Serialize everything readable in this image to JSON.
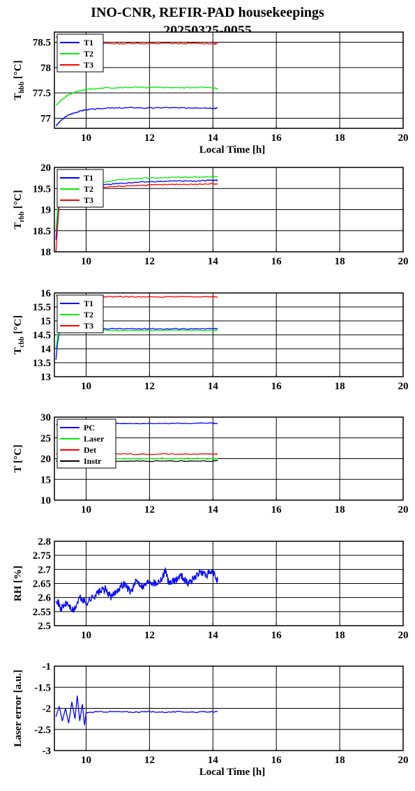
{
  "figure": {
    "title_line1": "INO-CNR, REFIR-PAD housekeepings",
    "title_line2": "20250325-0055"
  },
  "chart_data": [
    {
      "type": "line",
      "ylabel_main": "T",
      "ylabel_sub": "hbb",
      "ylabel_unit": "[°C]",
      "xlabel": "Local Time [h]",
      "xlim": [
        9,
        20
      ],
      "ylim": [
        76.8,
        78.7
      ],
      "xticks": [
        10,
        12,
        14,
        16,
        18,
        20
      ],
      "yticks": [
        77,
        77.5,
        78,
        78.5
      ],
      "ytick_labels": [
        "77",
        "77.5",
        "78",
        "78.5"
      ],
      "grid": true,
      "legend_position": "top-left",
      "series": [
        {
          "name": "T1",
          "color": "#0000ff",
          "x": [
            9.05,
            9.2,
            9.4,
            9.6,
            9.8,
            10.0,
            10.3,
            10.6,
            11,
            11.5,
            12,
            12.5,
            13,
            13.5,
            14,
            14.15
          ],
          "y": [
            76.85,
            76.95,
            77.05,
            77.1,
            77.14,
            77.17,
            77.18,
            77.2,
            77.2,
            77.21,
            77.2,
            77.21,
            77.2,
            77.21,
            77.2,
            77.2
          ]
        },
        {
          "name": "T2",
          "color": "#00ee00",
          "x": [
            9.05,
            9.2,
            9.4,
            9.6,
            9.8,
            10.0,
            10.3,
            10.6,
            11,
            11.5,
            12,
            12.5,
            13,
            13.5,
            14,
            14.15
          ],
          "y": [
            77.25,
            77.35,
            77.45,
            77.5,
            77.54,
            77.57,
            77.58,
            77.6,
            77.6,
            77.61,
            77.6,
            77.61,
            77.6,
            77.61,
            77.6,
            77.58
          ]
        },
        {
          "name": "T3",
          "color": "#ff0000",
          "x": [
            9.05,
            9.5,
            10,
            10.5,
            11,
            11.5,
            12,
            12.5,
            13,
            13.5,
            14,
            14.15
          ],
          "y": [
            78.6,
            78.52,
            78.5,
            78.48,
            78.47,
            78.48,
            78.47,
            78.48,
            78.47,
            78.48,
            78.47,
            78.47
          ]
        }
      ]
    },
    {
      "type": "line",
      "ylabel_main": "T",
      "ylabel_sub": "rbb",
      "ylabel_unit": "[°C]",
      "xlabel": "",
      "xlim": [
        9,
        20
      ],
      "ylim": [
        18,
        20
      ],
      "xticks": [
        10,
        12,
        14,
        16,
        18,
        20
      ],
      "yticks": [
        18,
        18.5,
        19,
        19.5,
        20
      ],
      "ytick_labels": [
        "18",
        "18.5",
        "19",
        "19.5",
        "20"
      ],
      "grid": true,
      "legend_position": "top-left",
      "series": [
        {
          "name": "T1",
          "color": "#0000ff",
          "x": [
            9.05,
            9.12,
            9.2,
            9.35,
            9.6,
            10,
            10.5,
            11,
            11.5,
            12,
            12.5,
            13,
            13.5,
            14,
            14.15
          ],
          "y": [
            18.3,
            19.1,
            19.4,
            19.5,
            19.53,
            19.56,
            19.58,
            19.62,
            19.64,
            19.66,
            19.67,
            19.68,
            19.68,
            19.69,
            19.7
          ]
        },
        {
          "name": "T2",
          "color": "#00ee00",
          "x": [
            9.05,
            9.12,
            9.2,
            9.35,
            9.6,
            10,
            10.5,
            11,
            11.5,
            12,
            12.5,
            13,
            13.5,
            14,
            14.15
          ],
          "y": [
            18.5,
            19.2,
            19.5,
            19.58,
            19.6,
            19.62,
            19.65,
            19.7,
            19.73,
            19.75,
            19.76,
            19.77,
            19.77,
            19.78,
            19.78
          ]
        },
        {
          "name": "T3",
          "color": "#ff0000",
          "x": [
            9.05,
            9.1,
            9.15,
            9.25,
            9.4,
            9.6,
            10,
            10.5,
            11,
            11.5,
            12,
            12.5,
            13,
            13.5,
            14,
            14.15
          ],
          "y": [
            18.0,
            18.6,
            19.1,
            19.35,
            19.45,
            19.48,
            19.5,
            19.52,
            19.55,
            19.57,
            19.58,
            19.59,
            19.6,
            19.6,
            19.61,
            19.61
          ]
        }
      ]
    },
    {
      "type": "line",
      "ylabel_main": "T",
      "ylabel_sub": "cbb",
      "ylabel_unit": "[°C]",
      "xlabel": "",
      "xlim": [
        9,
        20
      ],
      "ylim": [
        13,
        16
      ],
      "xticks": [
        10,
        12,
        14,
        16,
        18,
        20
      ],
      "yticks": [
        13,
        13.5,
        14,
        14.5,
        15,
        15.5,
        16
      ],
      "ytick_labels": [
        "13",
        "13.5",
        "14",
        "14.5",
        "15",
        "15.5",
        "16"
      ],
      "grid": true,
      "legend_position": "top-left",
      "series": [
        {
          "name": "T1",
          "color": "#0000ff",
          "x": [
            9.05,
            9.1,
            9.15,
            9.25,
            9.4,
            10,
            10.5,
            11,
            11.5,
            12,
            12.5,
            13,
            13.5,
            14,
            14.15
          ],
          "y": [
            13.6,
            14.2,
            14.55,
            14.7,
            14.72,
            14.72,
            14.72,
            14.72,
            14.71,
            14.72,
            14.71,
            14.72,
            14.71,
            14.72,
            14.72
          ]
        },
        {
          "name": "T2",
          "color": "#00ee00",
          "x": [
            9.05,
            9.1,
            9.15,
            9.25,
            9.4,
            10,
            10.5,
            11,
            11.5,
            12,
            12.5,
            13,
            13.5,
            14,
            14.15
          ],
          "y": [
            14.0,
            14.4,
            14.6,
            14.66,
            14.67,
            14.67,
            14.66,
            14.66,
            14.66,
            14.66,
            14.66,
            14.66,
            14.66,
            14.66,
            14.66
          ]
        },
        {
          "name": "T3",
          "color": "#ff0000",
          "x": [
            9.05,
            9.3,
            9.6,
            10,
            10.5,
            11,
            11.5,
            12,
            12.5,
            13,
            13.5,
            14,
            14.15
          ],
          "y": [
            15.9,
            15.88,
            15.88,
            15.87,
            15.86,
            15.87,
            15.86,
            15.87,
            15.86,
            15.87,
            15.86,
            15.87,
            15.86
          ]
        }
      ]
    },
    {
      "type": "line",
      "ylabel_main": "T [°C]",
      "ylabel_sub": "",
      "ylabel_unit": "",
      "xlabel": "",
      "xlim": [
        9,
        20
      ],
      "ylim": [
        10,
        30
      ],
      "xticks": [
        10,
        12,
        14,
        16,
        18,
        20
      ],
      "yticks": [
        10,
        15,
        20,
        25,
        30
      ],
      "ytick_labels": [
        "10",
        "15",
        "20",
        "25",
        "30"
      ],
      "grid": true,
      "legend_position": "top-left",
      "series": [
        {
          "name": "PC",
          "color": "#0000ff",
          "x": [
            9.05,
            10,
            11,
            12,
            13,
            14,
            14.15
          ],
          "y": [
            28.2,
            28.3,
            28.4,
            28.5,
            28.5,
            28.5,
            28.4
          ]
        },
        {
          "name": "Laser",
          "color": "#00ee00",
          "x": [
            9.05,
            10,
            11,
            12,
            13,
            14,
            14.15
          ],
          "y": [
            19.9,
            19.95,
            20.0,
            20.0,
            20.0,
            20.0,
            20.0
          ]
        },
        {
          "name": "Det",
          "color": "#ff0000",
          "x": [
            9.05,
            10,
            11,
            12,
            13,
            14,
            14.15
          ],
          "y": [
            21.1,
            21.1,
            21.1,
            21.1,
            21.1,
            21.1,
            21.1
          ]
        },
        {
          "name": "Instr",
          "color": "#000000",
          "x": [
            9.05,
            10,
            11,
            12,
            13,
            14,
            14.15
          ],
          "y": [
            19.3,
            19.35,
            19.4,
            19.4,
            19.45,
            19.45,
            19.45
          ]
        }
      ]
    },
    {
      "type": "line",
      "ylabel_main": "RH [%]",
      "ylabel_sub": "",
      "ylabel_unit": "",
      "xlabel": "",
      "xlim": [
        9,
        20
      ],
      "ylim": [
        2.5,
        2.8
      ],
      "xticks": [
        10,
        12,
        14,
        16,
        18,
        20
      ],
      "yticks": [
        2.5,
        2.55,
        2.6,
        2.65,
        2.7,
        2.75,
        2.8
      ],
      "ytick_labels": [
        "2.5",
        "2.55",
        "2.6",
        "2.65",
        "2.7",
        "2.75",
        "2.8"
      ],
      "grid": true,
      "legend_position": "",
      "series": [
        {
          "name": "",
          "color": "#0000ff",
          "x": [
            9.05,
            9.2,
            9.4,
            9.6,
            9.8,
            10.0,
            10.2,
            10.4,
            10.6,
            10.8,
            11.0,
            11.2,
            11.4,
            11.6,
            11.8,
            12.0,
            12.2,
            12.4,
            12.5,
            12.6,
            12.8,
            13.0,
            13.2,
            13.4,
            13.6,
            13.8,
            14.0,
            14.15
          ],
          "y": [
            2.6,
            2.56,
            2.58,
            2.55,
            2.6,
            2.58,
            2.6,
            2.62,
            2.63,
            2.6,
            2.63,
            2.65,
            2.62,
            2.66,
            2.64,
            2.66,
            2.65,
            2.67,
            2.7,
            2.65,
            2.66,
            2.68,
            2.65,
            2.67,
            2.69,
            2.68,
            2.69,
            2.66
          ]
        }
      ]
    },
    {
      "type": "line",
      "ylabel_main": "Laser error [a.u.]",
      "ylabel_sub": "",
      "ylabel_unit": "",
      "xlabel": "Local Time [h]",
      "xlim": [
        9,
        20
      ],
      "ylim": [
        -3,
        -1
      ],
      "xticks": [
        10,
        12,
        14,
        16,
        18,
        20
      ],
      "yticks": [
        -3,
        -2.5,
        -2,
        -1.5,
        -1
      ],
      "ytick_labels": [
        "-3",
        "-2.5",
        "-2",
        "-1.5",
        "-1"
      ],
      "grid": true,
      "legend_position": "",
      "series": [
        {
          "name": "",
          "color": "#0000ff",
          "x": [
            9.05,
            9.15,
            9.25,
            9.35,
            9.45,
            9.55,
            9.65,
            9.72,
            9.8,
            9.88,
            9.95,
            10.0,
            10.5,
            11,
            11.5,
            12,
            12.5,
            13,
            13.5,
            14,
            14.15
          ],
          "y": [
            -2.2,
            -1.95,
            -2.3,
            -2.0,
            -2.35,
            -1.85,
            -2.25,
            -1.7,
            -2.3,
            -1.9,
            -2.4,
            -2.1,
            -2.08,
            -2.08,
            -2.09,
            -2.08,
            -2.09,
            -2.08,
            -2.09,
            -2.08,
            -2.08
          ]
        }
      ]
    }
  ]
}
